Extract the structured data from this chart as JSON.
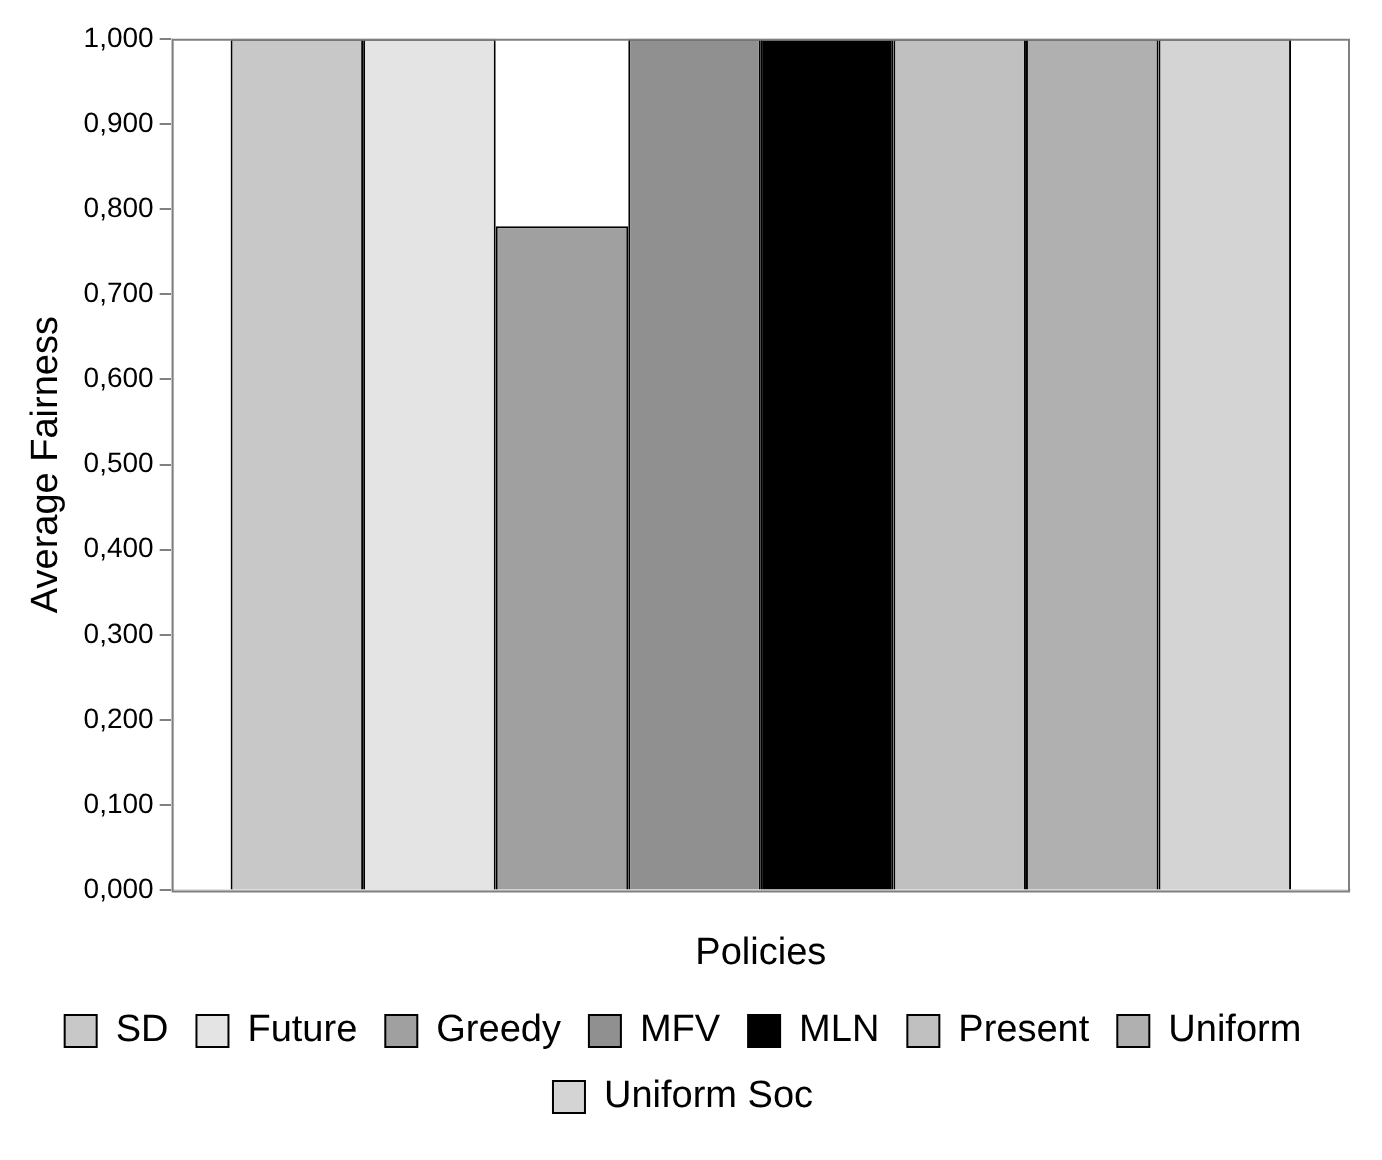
{
  "chart_data": {
    "type": "bar",
    "xlabel": "Policies",
    "ylabel": "Average Fairness",
    "categories": [
      null
    ],
    "series": [
      {
        "name": "SD",
        "color": "#c8c8c8",
        "values": [
          1.0
        ]
      },
      {
        "name": "Future",
        "color": "#e4e4e4",
        "values": [
          1.0
        ]
      },
      {
        "name": "Greedy",
        "color": "#a0a0a0",
        "values": [
          0.78
        ]
      },
      {
        "name": "MFV",
        "color": "#909090",
        "values": [
          1.0
        ]
      },
      {
        "name": "MLN",
        "color": "#000000",
        "values": [
          1.0
        ]
      },
      {
        "name": "Present",
        "color": "#c0c0c0",
        "values": [
          1.0
        ]
      },
      {
        "name": "Uniform",
        "color": "#b0b0b0",
        "values": [
          1.0
        ]
      },
      {
        "name": "Uniform Soc",
        "color": "#d4d4d4",
        "values": [
          1.0
        ]
      }
    ],
    "ylim": [
      0,
      1
    ],
    "yticks": [
      {
        "value": 0,
        "label": "0,000"
      },
      {
        "value": 0.1,
        "label": "0,100"
      },
      {
        "value": 0.2,
        "label": "0,200"
      },
      {
        "value": 0.3,
        "label": "0,300"
      },
      {
        "value": 0.4,
        "label": "0,400"
      },
      {
        "value": 0.5,
        "label": "0,500"
      },
      {
        "value": 0.6,
        "label": "0,600"
      },
      {
        "value": 0.7,
        "label": "0,700"
      },
      {
        "value": 0.8,
        "label": "0,800"
      },
      {
        "value": 0.9,
        "label": "0,900"
      },
      {
        "value": 1,
        "label": "1,000"
      }
    ],
    "grid": false,
    "legend": "bottom"
  }
}
